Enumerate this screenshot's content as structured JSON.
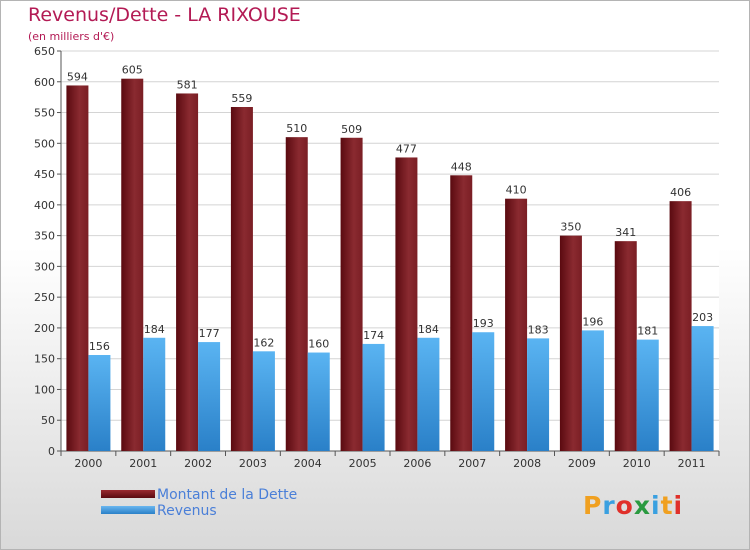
{
  "chart_data": {
    "type": "bar",
    "title": "Revenus/Dette - LA RIXOUSE",
    "subtitle": "(en milliers d'€)",
    "categories": [
      "2000",
      "2001",
      "2002",
      "2003",
      "2004",
      "2005",
      "2006",
      "2007",
      "2008",
      "2009",
      "2010",
      "2011"
    ],
    "series": [
      {
        "name": "Montant de la Dette",
        "color": "#7a1c20",
        "values": [
          594,
          605,
          581,
          559,
          510,
          509,
          477,
          448,
          410,
          350,
          341,
          406
        ]
      },
      {
        "name": "Revenus",
        "color": "#4a9fe0",
        "values": [
          156,
          184,
          177,
          162,
          160,
          174,
          184,
          193,
          183,
          196,
          181,
          203
        ]
      }
    ],
    "yticks": [
      0,
      50,
      100,
      150,
      200,
      250,
      300,
      350,
      400,
      450,
      500,
      550,
      600,
      650
    ],
    "ylim": [
      0,
      650
    ],
    "grid": true,
    "legend": "bottom-left"
  },
  "logo": {
    "text": "Proxiti",
    "colors": [
      "#f0a020",
      "#3aa0e0",
      "#e0302a",
      "#2a9a40",
      "#3aa0e0",
      "#f0a020",
      "#e0302a"
    ]
  }
}
